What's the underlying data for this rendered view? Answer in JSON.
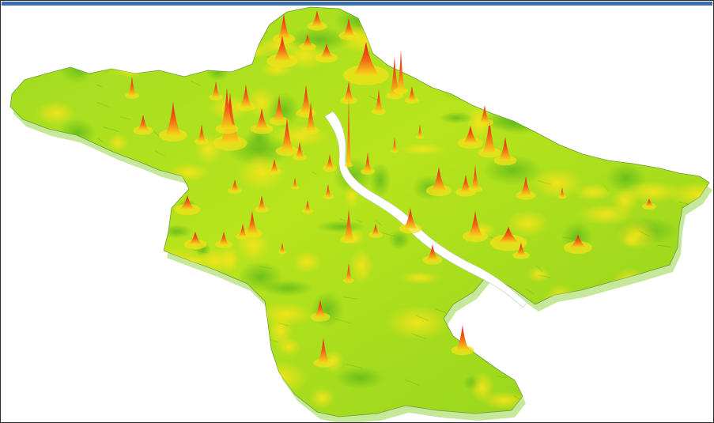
{
  "figure": {
    "title": "",
    "caption": ""
  },
  "map": {
    "kind": "3d-density-surface",
    "colors": {
      "low": "#7fd11b",
      "mid": "#c9e81a",
      "high": "#f2e21a",
      "peak": "#e8261a",
      "river": "#ffffff",
      "border": "#8aa07a"
    }
  }
}
